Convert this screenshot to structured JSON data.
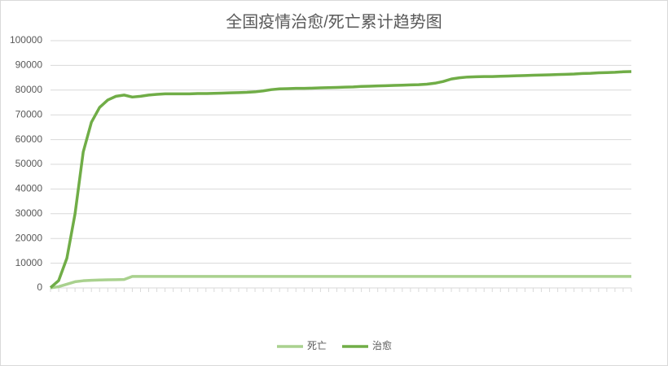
{
  "chart_data": {
    "type": "line",
    "title": "全国疫情治愈/死亡累计趋势图",
    "categories": [
      null,
      null,
      null,
      null,
      null,
      null,
      null,
      null,
      null,
      null,
      null,
      null,
      null,
      null,
      null,
      null,
      null,
      null,
      null,
      null,
      null,
      null,
      null,
      null,
      null,
      null,
      null,
      null,
      null,
      null,
      null,
      null,
      null,
      null,
      null,
      null,
      null,
      null,
      null,
      null,
      null,
      null,
      null,
      null,
      null,
      null,
      null,
      null,
      null,
      null,
      null,
      null,
      null,
      null,
      null,
      null,
      null,
      null,
      null,
      null,
      null,
      null,
      null,
      null,
      null,
      null,
      null,
      null,
      null,
      null,
      null,
      null
    ],
    "series": [
      {
        "name": "死亡",
        "color": "#a9d18e",
        "values": [
          20,
          500,
          1500,
          2500,
          2900,
          3100,
          3200,
          3300,
          3350,
          3400,
          4630,
          4640,
          4640,
          4640,
          4640,
          4640,
          4640,
          4640,
          4640,
          4640,
          4640,
          4640,
          4640,
          4640,
          4640,
          4640,
          4640,
          4640,
          4640,
          4640,
          4640,
          4650,
          4650,
          4650,
          4650,
          4650,
          4650,
          4650,
          4650,
          4650,
          4650,
          4650,
          4650,
          4650,
          4650,
          4650,
          4650,
          4650,
          4650,
          4650,
          4650,
          4650,
          4650,
          4650,
          4650,
          4650,
          4650,
          4650,
          4650,
          4650,
          4650,
          4650,
          4650,
          4650,
          4650,
          4650,
          4650,
          4650,
          4650,
          4650,
          4650,
          4650
        ]
      },
      {
        "name": "治愈",
        "color": "#70ad47",
        "values": [
          100,
          3000,
          12000,
          30000,
          55000,
          67000,
          73000,
          76000,
          77500,
          78000,
          77200,
          77500,
          78000,
          78300,
          78500,
          78500,
          78500,
          78500,
          78600,
          78600,
          78700,
          78800,
          78900,
          79000,
          79100,
          79300,
          79700,
          80200,
          80500,
          80600,
          80700,
          80700,
          80800,
          80900,
          81000,
          81100,
          81200,
          81300,
          81500,
          81600,
          81700,
          81800,
          81900,
          82000,
          82100,
          82200,
          82400,
          82800,
          83500,
          84500,
          85000,
          85300,
          85400,
          85500,
          85500,
          85600,
          85700,
          85800,
          85900,
          86000,
          86100,
          86200,
          86300,
          86400,
          86500,
          86700,
          86800,
          87000,
          87100,
          87200,
          87400,
          87500
        ]
      }
    ],
    "ylim": [
      0,
      100000
    ],
    "yticks": [
      0,
      10000,
      20000,
      30000,
      40000,
      50000,
      60000,
      70000,
      80000,
      90000,
      100000
    ],
    "grid": true,
    "legend": "bottom"
  }
}
